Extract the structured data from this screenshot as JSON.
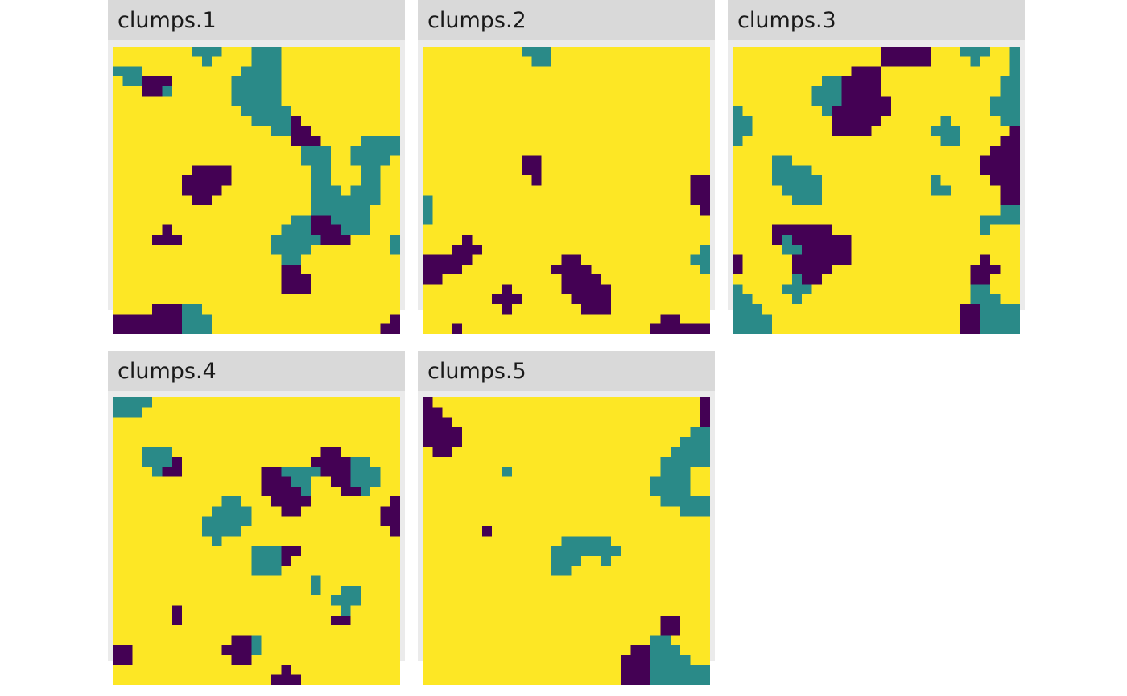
{
  "chart_data": {
    "type": "heatmap",
    "grid_size": 29,
    "palette": {
      "1": "#440154",
      "2": "#2a8a88",
      "3": "#fde725"
    },
    "panels": [
      {
        "label": "clumps.1",
        "seed": 1
      },
      {
        "label": "clumps.2",
        "seed": 2
      },
      {
        "label": "clumps.3",
        "seed": 3
      },
      {
        "label": "clumps.4",
        "seed": 4
      },
      {
        "label": "clumps.5",
        "seed": 5
      }
    ]
  }
}
